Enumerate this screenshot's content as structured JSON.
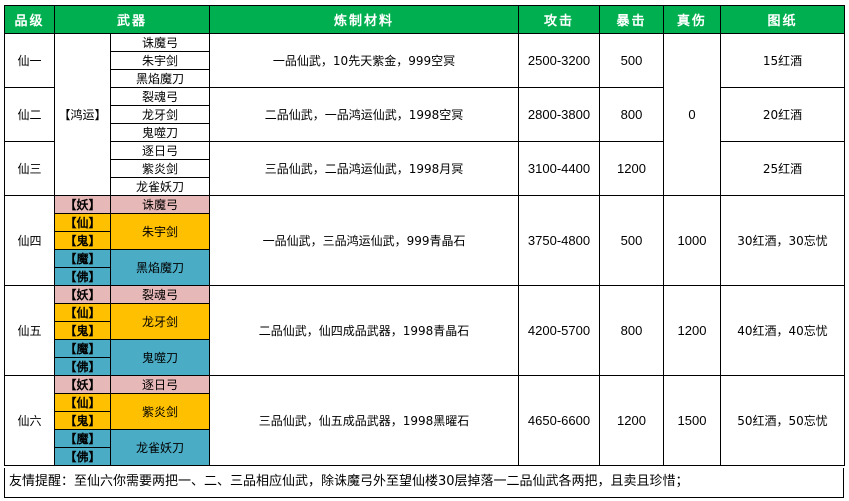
{
  "headers": {
    "grade": "品级",
    "weapon": "武器",
    "materials": "炼制材料",
    "attack": "攻击",
    "crit": "暴击",
    "true_dmg": "真伤",
    "recipe": "图纸"
  },
  "hongyun": "【鸿运】",
  "shared_true_dmg": "0",
  "tags": {
    "yao": "【妖】",
    "xian": "【仙】",
    "gui": "【鬼】",
    "mo": "【魔】",
    "fo": "【佛】"
  },
  "rows": [
    {
      "grade": "仙一",
      "weapons": [
        "诛魔弓",
        "朱宇剑",
        "黑焰魔刀"
      ],
      "materials": "一品仙武，10先天紫金，999空冥",
      "attack": "2500-3200",
      "crit": "500",
      "recipe": "15红酒"
    },
    {
      "grade": "仙二",
      "weapons": [
        "裂魂弓",
        "龙牙剑",
        "鬼噬刀"
      ],
      "materials": "二品仙武，一品鸿运仙武，1998空冥",
      "attack": "2800-3800",
      "crit": "800",
      "recipe": "20红酒"
    },
    {
      "grade": "仙三",
      "weapons": [
        "逐日弓",
        "紫炎剑",
        "龙雀妖刀"
      ],
      "materials": "三品仙武，二品鸿运仙武，1998月冥",
      "attack": "3100-4400",
      "crit": "1200",
      "recipe": "25红酒"
    },
    {
      "grade": "仙四",
      "weapons": [
        "诛魔弓",
        "朱宇剑",
        "黑焰魔刀"
      ],
      "materials": "一品仙武，三品鸿运仙武，999青晶石",
      "attack": "3750-4800",
      "crit": "500",
      "true_dmg": "1000",
      "recipe": "30红酒，30忘忧"
    },
    {
      "grade": "仙五",
      "weapons": [
        "裂魂弓",
        "龙牙剑",
        "鬼噬刀"
      ],
      "materials": "二品仙武，仙四成品武器，1998青晶石",
      "attack": "4200-5700",
      "crit": "800",
      "true_dmg": "1200",
      "recipe": "40红酒，40忘忧"
    },
    {
      "grade": "仙六",
      "weapons": [
        "逐日弓",
        "紫炎剑",
        "龙雀妖刀"
      ],
      "materials": "三品仙武，仙五成品武器，1998黑曜石",
      "attack": "4650-6600",
      "crit": "1200",
      "true_dmg": "1500",
      "recipe": "50红酒，50忘忧"
    }
  ],
  "tip": "友情提醒：至仙六你需要两把一、二、三品相应仙武，除诛魔弓外至望仙楼30层掉落一二品仙武各两把，且卖且珍惜；",
  "colors": {
    "header_bg": "#00b050",
    "yao": "#e6b8b7",
    "xian_gui": "#ffc000",
    "mo_fo": "#4bacc6"
  }
}
